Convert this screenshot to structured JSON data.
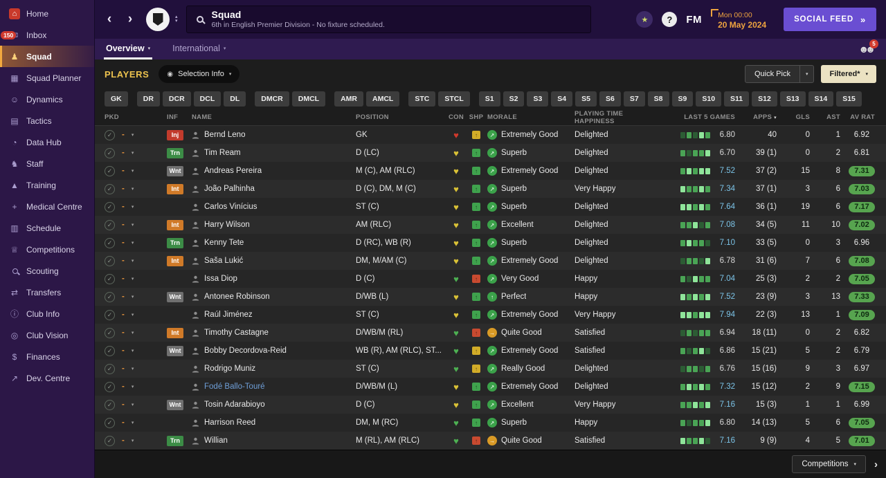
{
  "sidebar": {
    "items": [
      {
        "label": "Home",
        "icon": "home",
        "active": false
      },
      {
        "label": "Inbox",
        "icon": "inbox",
        "badge": "150",
        "active": false
      },
      {
        "label": "Squad",
        "icon": "squad",
        "active": true
      },
      {
        "label": "Squad Planner",
        "icon": "squad-planner",
        "active": false
      },
      {
        "label": "Dynamics",
        "icon": "dynamics",
        "active": false
      },
      {
        "label": "Tactics",
        "icon": "tactics",
        "active": false
      },
      {
        "label": "Data Hub",
        "icon": "data-hub",
        "active": false
      },
      {
        "label": "Staff",
        "icon": "staff",
        "active": false
      },
      {
        "label": "Training",
        "icon": "training",
        "active": false
      },
      {
        "label": "Medical Centre",
        "icon": "medical-centre",
        "active": false
      },
      {
        "label": "Schedule",
        "icon": "schedule",
        "active": false
      },
      {
        "label": "Competitions",
        "icon": "competitions",
        "active": false
      },
      {
        "label": "Scouting",
        "icon": "scouting",
        "active": false
      },
      {
        "label": "Transfers",
        "icon": "transfers",
        "active": false
      },
      {
        "label": "Club Info",
        "icon": "club-info",
        "active": false
      },
      {
        "label": "Club Vision",
        "icon": "club-vision",
        "active": false
      },
      {
        "label": "Finances",
        "icon": "finances",
        "active": false
      },
      {
        "label": "Dev. Centre",
        "icon": "dev-centre",
        "active": false
      }
    ]
  },
  "header": {
    "title": "Squad",
    "subtitle": "6th in English Premier Division - No fixture scheduled.",
    "fm": "FM",
    "help": "?",
    "date_line1": "Mon 00:00",
    "date_line2": "20 May 2024",
    "social_feed": "SOCIAL FEED"
  },
  "tabs": [
    {
      "label": "Overview",
      "active": true
    },
    {
      "label": "International",
      "active": false
    }
  ],
  "tabs_badge": "5",
  "toolbar": {
    "players": "PLAYERS",
    "selection_info": "Selection Info",
    "quick_pick": "Quick Pick",
    "filtered": "Filtered*"
  },
  "position_filters": [
    "GK",
    "DR",
    "DCR",
    "DCL",
    "DL",
    "DMCR",
    "DMCL",
    "AMR",
    "AMCL",
    "STC",
    "STCL",
    "S1",
    "S2",
    "S3",
    "S4",
    "S5",
    "S6",
    "S7",
    "S8",
    "S9",
    "S10",
    "S11",
    "S12",
    "S13",
    "S14",
    "S15"
  ],
  "table": {
    "columns": [
      "PKD",
      "INF",
      "NAME",
      "POSITION",
      "CON",
      "SHP",
      "MORALE",
      "PLAYING TIME HAPPINESS",
      "LAST 5 GAMES",
      "APPS",
      "GLS",
      "AST",
      "AV RAT"
    ],
    "rows": [
      {
        "pick": "-",
        "inf_label": "Inj",
        "inf_type": "injury",
        "name": "Bernd Leno",
        "loan": false,
        "pos": "GK",
        "con": "red",
        "shp": "yellow",
        "morale": "Extremely Good",
        "morale_tone": "green",
        "morale_icon": "arrow-up-right",
        "pth": "Delighted",
        "last5": "6.80",
        "bars": [
          "dim",
          "mid",
          "dim",
          "bright",
          "mid"
        ],
        "apps": "40",
        "gls": "0",
        "ast": "1",
        "avrat": "6.92",
        "hot": false
      },
      {
        "pick": "-",
        "inf_label": "Trn",
        "inf_type": "training",
        "name": "Tim Ream",
        "loan": false,
        "pos": "D (LC)",
        "con": "yellow",
        "shp": "green",
        "morale": "Superb",
        "morale_tone": "green",
        "morale_icon": "arrow-up-right",
        "pth": "Delighted",
        "last5": "6.70",
        "bars": [
          "mid",
          "dim",
          "mid",
          "mid",
          "bright"
        ],
        "apps": "39 (1)",
        "gls": "0",
        "ast": "2",
        "avrat": "6.81",
        "hot": false
      },
      {
        "pick": "-",
        "inf_label": "Wnt",
        "inf_type": "wanted",
        "name": "Andreas Pereira",
        "loan": false,
        "pos": "M (C), AM (RLC)",
        "con": "yellow",
        "shp": "green",
        "morale": "Extremely Good",
        "morale_tone": "green",
        "morale_icon": "arrow-up-right",
        "pth": "Delighted",
        "last5": "7.52",
        "bars": [
          "mid",
          "bright",
          "mid",
          "bright",
          "bright"
        ],
        "apps": "37 (2)",
        "gls": "15",
        "ast": "8",
        "avrat": "7.31",
        "hot": true
      },
      {
        "pick": "-",
        "inf_label": "Int",
        "inf_type": "international",
        "name": "João Palhinha",
        "loan": false,
        "pos": "D (C), DM, M (C)",
        "con": "yellow",
        "shp": "green",
        "morale": "Superb",
        "morale_tone": "green",
        "morale_icon": "arrow-up-right",
        "pth": "Very Happy",
        "last5": "7.34",
        "bars": [
          "bright",
          "mid",
          "mid",
          "bright",
          "mid"
        ],
        "apps": "37 (1)",
        "gls": "3",
        "ast": "6",
        "avrat": "7.03",
        "hot": true
      },
      {
        "pick": "-",
        "inf_label": "",
        "inf_type": "",
        "name": "Carlos Vinícius",
        "loan": false,
        "pos": "ST (C)",
        "con": "yellow",
        "shp": "green",
        "morale": "Superb",
        "morale_tone": "green",
        "morale_icon": "arrow-up-right",
        "pth": "Delighted",
        "last5": "7.64",
        "bars": [
          "bright",
          "bright",
          "mid",
          "bright",
          "mid"
        ],
        "apps": "36 (1)",
        "gls": "19",
        "ast": "6",
        "avrat": "7.17",
        "hot": true
      },
      {
        "pick": "-",
        "inf_label": "Int",
        "inf_type": "international",
        "name": "Harry Wilson",
        "loan": false,
        "pos": "AM (RLC)",
        "con": "yellow",
        "shp": "green",
        "morale": "Excellent",
        "morale_tone": "green",
        "morale_icon": "arrow-up-right",
        "pth": "Delighted",
        "last5": "7.08",
        "bars": [
          "mid",
          "mid",
          "bright",
          "dim",
          "mid"
        ],
        "apps": "34 (5)",
        "gls": "11",
        "ast": "10",
        "avrat": "7.02",
        "hot": true
      },
      {
        "pick": "-",
        "inf_label": "Trn",
        "inf_type": "training",
        "name": "Kenny Tete",
        "loan": false,
        "pos": "D (RC), WB (R)",
        "con": "yellow",
        "shp": "green",
        "morale": "Superb",
        "morale_tone": "green",
        "morale_icon": "arrow-up-right",
        "pth": "Delighted",
        "last5": "7.10",
        "bars": [
          "mid",
          "bright",
          "mid",
          "mid",
          "dim"
        ],
        "apps": "33 (5)",
        "gls": "0",
        "ast": "3",
        "avrat": "6.96",
        "hot": false
      },
      {
        "pick": "-",
        "inf_label": "Int",
        "inf_type": "international",
        "name": "Saša Lukić",
        "loan": false,
        "pos": "DM, M/AM (C)",
        "con": "yellow",
        "shp": "green",
        "morale": "Extremely Good",
        "morale_tone": "green",
        "morale_icon": "arrow-up-right",
        "pth": "Delighted",
        "last5": "6.78",
        "bars": [
          "dim",
          "mid",
          "mid",
          "dim",
          "bright"
        ],
        "apps": "31 (6)",
        "gls": "7",
        "ast": "6",
        "avrat": "7.08",
        "hot": true
      },
      {
        "pick": "-",
        "inf_label": "",
        "inf_type": "",
        "name": "Issa Diop",
        "loan": false,
        "pos": "D (C)",
        "con": "green",
        "shp": "red",
        "morale": "Very Good",
        "morale_tone": "green",
        "morale_icon": "arrow-up-right",
        "pth": "Happy",
        "last5": "7.04",
        "bars": [
          "mid",
          "dim",
          "bright",
          "mid",
          "mid"
        ],
        "apps": "25 (3)",
        "gls": "2",
        "ast": "2",
        "avrat": "7.05",
        "hot": true
      },
      {
        "pick": "-",
        "inf_label": "Wnt",
        "inf_type": "wanted",
        "name": "Antonee Robinson",
        "loan": false,
        "pos": "D/WB (L)",
        "con": "yellow",
        "shp": "green",
        "morale": "Perfect",
        "morale_tone": "green",
        "morale_icon": "arrow-up",
        "pth": "Happy",
        "last5": "7.52",
        "bars": [
          "bright",
          "mid",
          "bright",
          "mid",
          "bright"
        ],
        "apps": "23 (9)",
        "gls": "3",
        "ast": "13",
        "avrat": "7.33",
        "hot": true
      },
      {
        "pick": "-",
        "inf_label": "",
        "inf_type": "",
        "name": "Raúl Jiménez",
        "loan": false,
        "pos": "ST (C)",
        "con": "yellow",
        "shp": "green",
        "morale": "Extremely Good",
        "morale_tone": "green",
        "morale_icon": "arrow-up-right",
        "pth": "Very Happy",
        "last5": "7.94",
        "bars": [
          "bright",
          "bright",
          "mid",
          "bright",
          "bright"
        ],
        "apps": "22 (3)",
        "gls": "13",
        "ast": "1",
        "avrat": "7.09",
        "hot": true
      },
      {
        "pick": "-",
        "inf_label": "Int",
        "inf_type": "international",
        "name": "Timothy Castagne",
        "loan": false,
        "pos": "D/WB/M (RL)",
        "con": "green",
        "shp": "red",
        "morale": "Quite Good",
        "morale_tone": "amber",
        "morale_icon": "arrow-right",
        "pth": "Satisfied",
        "last5": "6.94",
        "bars": [
          "dim",
          "mid",
          "dim",
          "mid",
          "mid"
        ],
        "apps": "18 (11)",
        "gls": "0",
        "ast": "2",
        "avrat": "6.82",
        "hot": false
      },
      {
        "pick": "-",
        "inf_label": "Wnt",
        "inf_type": "wanted",
        "name": "Bobby Decordova-Reid",
        "loan": false,
        "pos": "WB (R), AM (RLC), ST...",
        "con": "green",
        "shp": "yellow",
        "morale": "Extremely Good",
        "morale_tone": "green",
        "morale_icon": "arrow-up-right",
        "pth": "Satisfied",
        "last5": "6.86",
        "bars": [
          "mid",
          "dim",
          "mid",
          "bright",
          "dim"
        ],
        "apps": "15 (21)",
        "gls": "5",
        "ast": "2",
        "avrat": "6.79",
        "hot": false
      },
      {
        "pick": "-",
        "inf_label": "",
        "inf_type": "",
        "name": "Rodrigo Muniz",
        "loan": false,
        "pos": "ST (C)",
        "con": "green",
        "shp": "yellow",
        "morale": "Really Good",
        "morale_tone": "green",
        "morale_icon": "arrow-up-right",
        "pth": "Delighted",
        "last5": "6.76",
        "bars": [
          "dim",
          "mid",
          "mid",
          "dim",
          "mid"
        ],
        "apps": "15 (16)",
        "gls": "9",
        "ast": "3",
        "avrat": "6.97",
        "hot": false
      },
      {
        "pick": "-",
        "inf_label": "",
        "inf_type": "",
        "name": "Fodé Ballo-Touré",
        "loan": true,
        "pos": "D/WB/M (L)",
        "con": "yellow",
        "shp": "green",
        "morale": "Extremely Good",
        "morale_tone": "green",
        "morale_icon": "arrow-up-right",
        "pth": "Delighted",
        "last5": "7.32",
        "bars": [
          "mid",
          "bright",
          "mid",
          "bright",
          "mid"
        ],
        "apps": "15 (12)",
        "gls": "2",
        "ast": "9",
        "avrat": "7.15",
        "hot": true
      },
      {
        "pick": "-",
        "inf_label": "Wnt",
        "inf_type": "wanted",
        "name": "Tosin Adarabioyo",
        "loan": false,
        "pos": "D (C)",
        "con": "yellow",
        "shp": "green",
        "morale": "Excellent",
        "morale_tone": "green",
        "morale_icon": "arrow-up-right",
        "pth": "Very Happy",
        "last5": "7.16",
        "bars": [
          "mid",
          "mid",
          "bright",
          "mid",
          "bright"
        ],
        "apps": "15 (3)",
        "gls": "1",
        "ast": "1",
        "avrat": "6.99",
        "hot": false
      },
      {
        "pick": "-",
        "inf_label": "",
        "inf_type": "",
        "name": "Harrison Reed",
        "loan": false,
        "pos": "DM, M (RC)",
        "con": "green",
        "shp": "green",
        "morale": "Superb",
        "morale_tone": "green",
        "morale_icon": "arrow-up-right",
        "pth": "Happy",
        "last5": "6.80",
        "bars": [
          "mid",
          "dim",
          "mid",
          "mid",
          "bright"
        ],
        "apps": "14 (13)",
        "gls": "5",
        "ast": "6",
        "avrat": "7.05",
        "hot": true
      },
      {
        "pick": "-",
        "inf_label": "Trn",
        "inf_type": "training",
        "name": "Willian",
        "loan": false,
        "pos": "M (RL), AM (RLC)",
        "con": "green",
        "shp": "red",
        "morale": "Quite Good",
        "morale_tone": "amber",
        "morale_icon": "arrow-right",
        "pth": "Satisfied",
        "last5": "7.16",
        "bars": [
          "bright",
          "mid",
          "mid",
          "bright",
          "dim"
        ],
        "apps": "9 (9)",
        "gls": "4",
        "ast": "5",
        "avrat": "7.01",
        "hot": true
      }
    ]
  },
  "footer": {
    "competitions": "Competitions"
  },
  "colors": {
    "accent_purple": "#6a4ed2",
    "accent_orange": "#eea33f",
    "rating_green": "#57a44f",
    "players_gold": "#ecc24e"
  }
}
